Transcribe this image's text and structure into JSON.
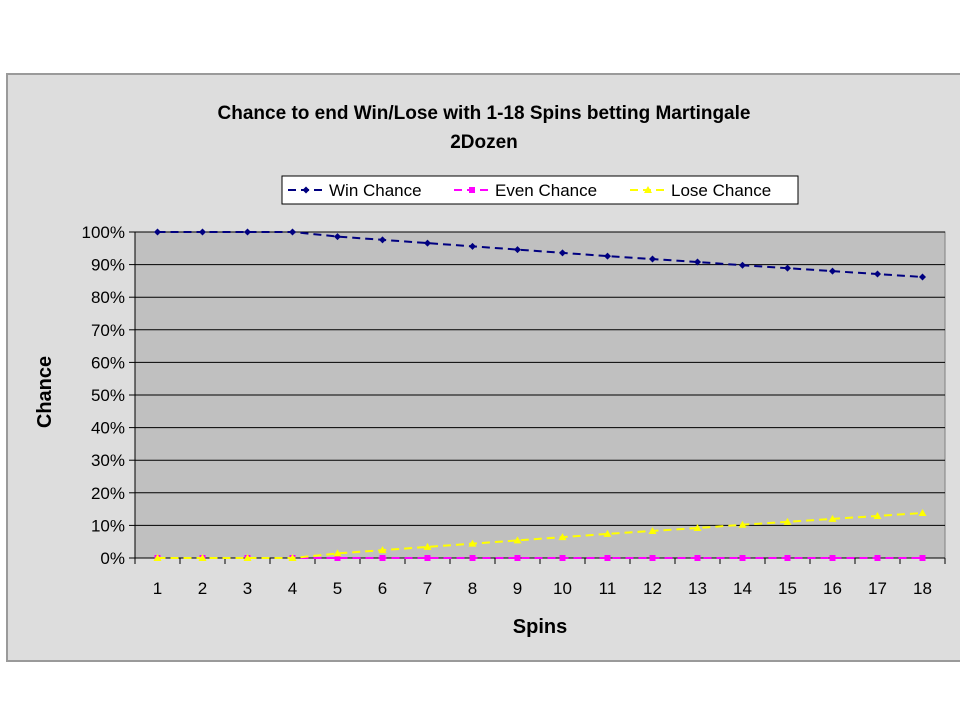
{
  "chart_data": {
    "type": "line",
    "title_lines": [
      "Chance to end Win/Lose with 1-18 Spins betting Martingale",
      "2Dozen"
    ],
    "xlabel": "Spins",
    "ylabel": "Chance",
    "x": [
      1,
      2,
      3,
      4,
      5,
      6,
      7,
      8,
      9,
      10,
      11,
      12,
      13,
      14,
      15,
      16,
      17,
      18
    ],
    "x_tick_labels": [
      "1",
      "2",
      "3",
      "4",
      "5",
      "6",
      "7",
      "8",
      "9",
      "10",
      "11",
      "12",
      "13",
      "14",
      "15",
      "16",
      "17",
      "18"
    ],
    "ylim": [
      0,
      100
    ],
    "y_ticks": [
      0,
      10,
      20,
      30,
      40,
      50,
      60,
      70,
      80,
      90,
      100
    ],
    "y_tick_labels": [
      "0%",
      "10%",
      "20%",
      "30%",
      "40%",
      "50%",
      "60%",
      "70%",
      "80%",
      "90%",
      "100%"
    ],
    "grid": "horizontal",
    "legend_position": "top",
    "series": [
      {
        "name": "Win Chance",
        "color": "#000080",
        "marker": "diamond",
        "values": [
          100,
          100,
          100,
          100,
          98.6,
          97.6,
          96.6,
          95.6,
          94.6,
          93.6,
          92.6,
          91.7,
          90.8,
          89.8,
          88.9,
          88.0,
          87.1,
          86.2
        ]
      },
      {
        "name": "Even Chance",
        "color": "#ff00ff",
        "marker": "square",
        "values": [
          0,
          0,
          0,
          0,
          0,
          0,
          0,
          0,
          0,
          0,
          0,
          0,
          0,
          0,
          0,
          0,
          0,
          0
        ]
      },
      {
        "name": "Lose Chance",
        "color": "#ffff00",
        "marker": "triangle",
        "values": [
          0,
          0,
          0,
          0,
          1.4,
          2.4,
          3.4,
          4.4,
          5.4,
          6.4,
          7.4,
          8.3,
          9.2,
          10.2,
          11.1,
          12.0,
          12.9,
          13.8
        ]
      }
    ]
  }
}
